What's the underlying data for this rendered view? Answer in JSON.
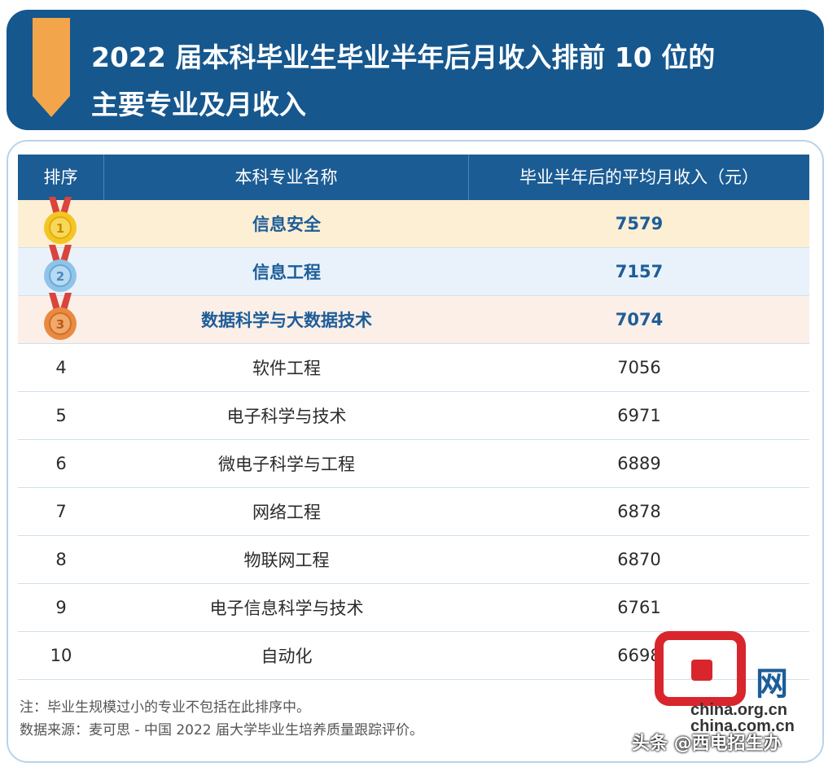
{
  "title": {
    "line1": "2022 届本科毕业生毕业半年后月收入排前 10 位的",
    "line2": "主要专业及月收入"
  },
  "table": {
    "headers": [
      "排序",
      "本科专业名称",
      "毕业半年后的平均月收入（元）"
    ]
  },
  "chart_data": {
    "type": "table",
    "columns": [
      "排序",
      "本科专业名称",
      "毕业半年后的平均月收入（元）"
    ],
    "rows": [
      {
        "rank": "1",
        "major": "信息安全",
        "income": 7579
      },
      {
        "rank": "2",
        "major": "信息工程",
        "income": 7157
      },
      {
        "rank": "3",
        "major": "数据科学与大数据技术",
        "income": 7074
      },
      {
        "rank": "4",
        "major": "软件工程",
        "income": 7056
      },
      {
        "rank": "5",
        "major": "电子科学与技术",
        "income": 6971
      },
      {
        "rank": "6",
        "major": "微电子科学与工程",
        "income": 6889
      },
      {
        "rank": "7",
        "major": "网络工程",
        "income": 6878
      },
      {
        "rank": "8",
        "major": "物联网工程",
        "income": 6870
      },
      {
        "rank": "9",
        "major": "电子信息科学与技术",
        "income": 6761
      },
      {
        "rank": "10",
        "major": "自动化",
        "income": 6698
      }
    ]
  },
  "medals": {
    "gold": {
      "color": "#f3c623",
      "ribbon": "#d9443b"
    },
    "silver": {
      "color": "#8fc4e8",
      "ribbon": "#d9443b"
    },
    "bronze": {
      "color": "#e98a43",
      "ribbon": "#d9443b"
    }
  },
  "notes": {
    "note": "注：毕业生规模过小的专业不包括在此排序中。",
    "source": "数据来源：麦可思 - 中国 2022 届大学毕业生培养质量跟踪评价。"
  },
  "watermark": {
    "brand": "网",
    "url1": "china.org.cn",
    "url2": "china.com.cn",
    "account": "头条 @西电招生办"
  },
  "colors": {
    "banner": "#16578e",
    "header": "#1b5c94",
    "accent_text": "#1d5d99",
    "ribbon": "#f2a54a"
  }
}
